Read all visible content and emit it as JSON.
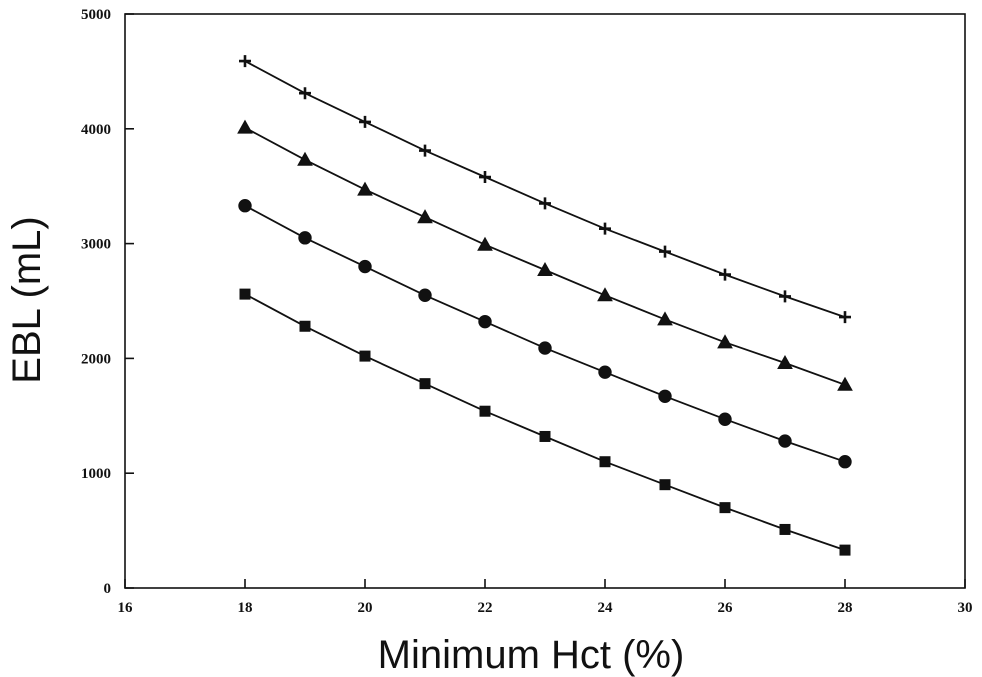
{
  "chart_data": {
    "type": "line",
    "title": "",
    "xlabel": "Minimum Hct (%)",
    "ylabel": "EBL (mL)",
    "xlim": [
      16,
      30
    ],
    "ylim": [
      0,
      5000
    ],
    "x_ticks": [
      16,
      18,
      20,
      22,
      24,
      26,
      28,
      30
    ],
    "y_ticks": [
      0,
      1000,
      2000,
      3000,
      4000,
      5000
    ],
    "grid": false,
    "legend": "none",
    "x": [
      18,
      19,
      20,
      21,
      22,
      23,
      24,
      25,
      26,
      27,
      28
    ],
    "series": [
      {
        "marker": "plus",
        "values": [
          4590,
          4310,
          4060,
          3810,
          3580,
          3350,
          3130,
          2930,
          2730,
          2540,
          2360
        ]
      },
      {
        "marker": "triangle",
        "values": [
          4010,
          3730,
          3470,
          3230,
          2990,
          2770,
          2550,
          2340,
          2140,
          1960,
          1770
        ]
      },
      {
        "marker": "circle",
        "values": [
          3330,
          3050,
          2800,
          2550,
          2320,
          2090,
          1880,
          1670,
          1470,
          1280,
          1100
        ]
      },
      {
        "marker": "square",
        "values": [
          2560,
          2280,
          2020,
          1780,
          1540,
          1320,
          1100,
          900,
          700,
          510,
          330
        ]
      }
    ]
  }
}
